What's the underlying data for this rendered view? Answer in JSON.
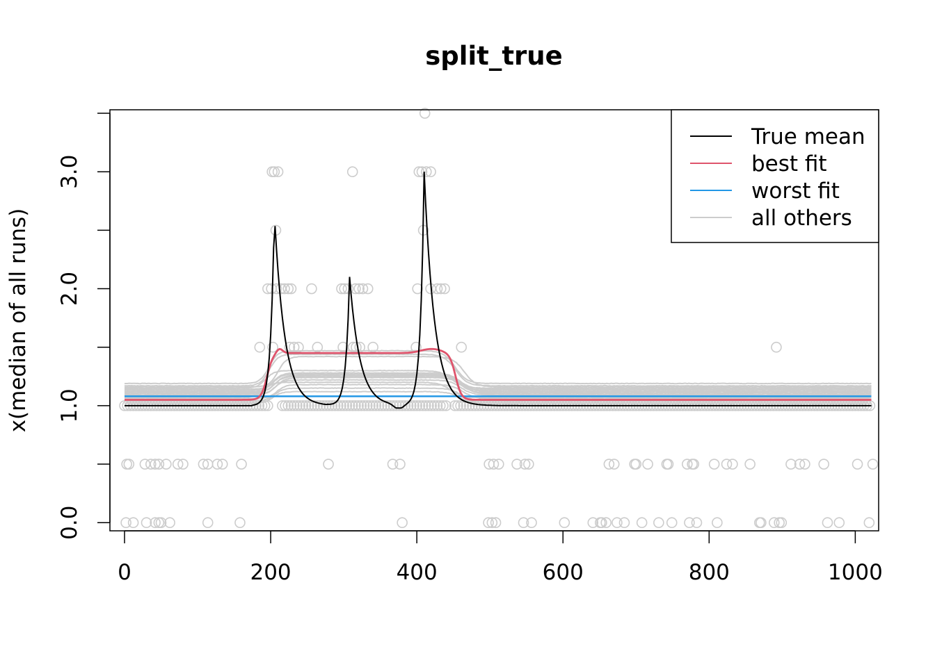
{
  "chart_data": {
    "type": "line",
    "title": "split_true",
    "xlabel": "",
    "ylabel": "x(median of all runs)",
    "xlim": [
      -20,
      1032
    ],
    "ylim": [
      -0.07,
      3.53
    ],
    "x_ticks": [
      0,
      200,
      400,
      600,
      800,
      1000
    ],
    "x_tick_labels": [
      "0",
      "200",
      "400",
      "600",
      "800",
      "1000"
    ],
    "y_ticks": [
      0,
      0.5,
      1,
      1.5,
      2,
      2.5,
      3,
      3.5
    ],
    "y_tick_labels": [
      "0.0",
      "",
      "1.0",
      "",
      "2.0",
      "",
      "3.0",
      ""
    ],
    "legend": {
      "position": "top-right",
      "entries": [
        {
          "label": "True mean",
          "color": "#000000"
        },
        {
          "label": "best fit",
          "color": "#DF536B"
        },
        {
          "label": "worst fit",
          "color": "#2297E6"
        },
        {
          "label": "all others",
          "color": "#CCCCCC"
        }
      ]
    },
    "series": [
      {
        "name": "True mean",
        "color": "#000000",
        "baseline": 1.0,
        "spikes": [
          {
            "start": 205,
            "end": 260,
            "peak": 2.65
          },
          {
            "start": 308,
            "end": 358,
            "peak": 2.1
          },
          {
            "start": 410,
            "end": 480,
            "peak": 3.0
          }
        ],
        "dip": {
          "x": 375,
          "value": 1.1
        }
      },
      {
        "name": "best fit",
        "color": "#DF536B",
        "baseline": 1.05,
        "plateau": {
          "from": 205,
          "to": 442,
          "value": 1.45
        }
      },
      {
        "name": "worst fit",
        "color": "#2297E6",
        "value": 1.08
      },
      {
        "name": "all others",
        "color": "#CCCCCC",
        "baselines": [
          1.02,
          1.04,
          1.06,
          1.07,
          1.09,
          1.1,
          1.11,
          1.12,
          1.13,
          1.14,
          1.15,
          1.16,
          1.17,
          1.19
        ],
        "plateau_values": [
          1.12,
          1.15,
          1.18,
          1.2,
          1.22,
          1.24,
          1.25,
          1.26,
          1.27,
          1.28,
          1.3,
          1.42,
          1.44,
          1.47
        ]
      }
    ],
    "observations": {
      "color": "#CCCCCC",
      "n": 1024,
      "zeros_x": [
        2,
        12,
        30,
        42,
        47,
        50,
        62,
        114,
        158,
        380,
        498,
        503,
        508,
        546,
        557,
        602,
        641,
        651,
        653,
        659,
        674,
        684,
        708,
        731,
        749,
        773,
        783,
        811,
        869,
        871,
        889,
        896,
        899,
        962,
        978,
        1019
      ],
      "halves_x": [
        3,
        6,
        28,
        36,
        42,
        47,
        57,
        73,
        80,
        108,
        114,
        127,
        134,
        160,
        279,
        367,
        377,
        499,
        505,
        512,
        537,
        548,
        553,
        663,
        670,
        698,
        700,
        716,
        742,
        744,
        770,
        777,
        779,
        807,
        824,
        832,
        856,
        912,
        924,
        931,
        957,
        1003,
        1024
      ],
      "ones_1_5_x": [
        185,
        203,
        226,
        232,
        238,
        264,
        299,
        313,
        317,
        322,
        340,
        399,
        461,
        892
      ],
      "twos_x": [
        196,
        201,
        208,
        214,
        219,
        224,
        228,
        256,
        297,
        301,
        306,
        316,
        321,
        326,
        333,
        401,
        419,
        428,
        433,
        438
      ],
      "twos_5_x": [
        207,
        409
      ],
      "threes_x": [
        202,
        205,
        210,
        312,
        403,
        407,
        413,
        419
      ],
      "threes_5_x": [
        411
      ]
    }
  }
}
